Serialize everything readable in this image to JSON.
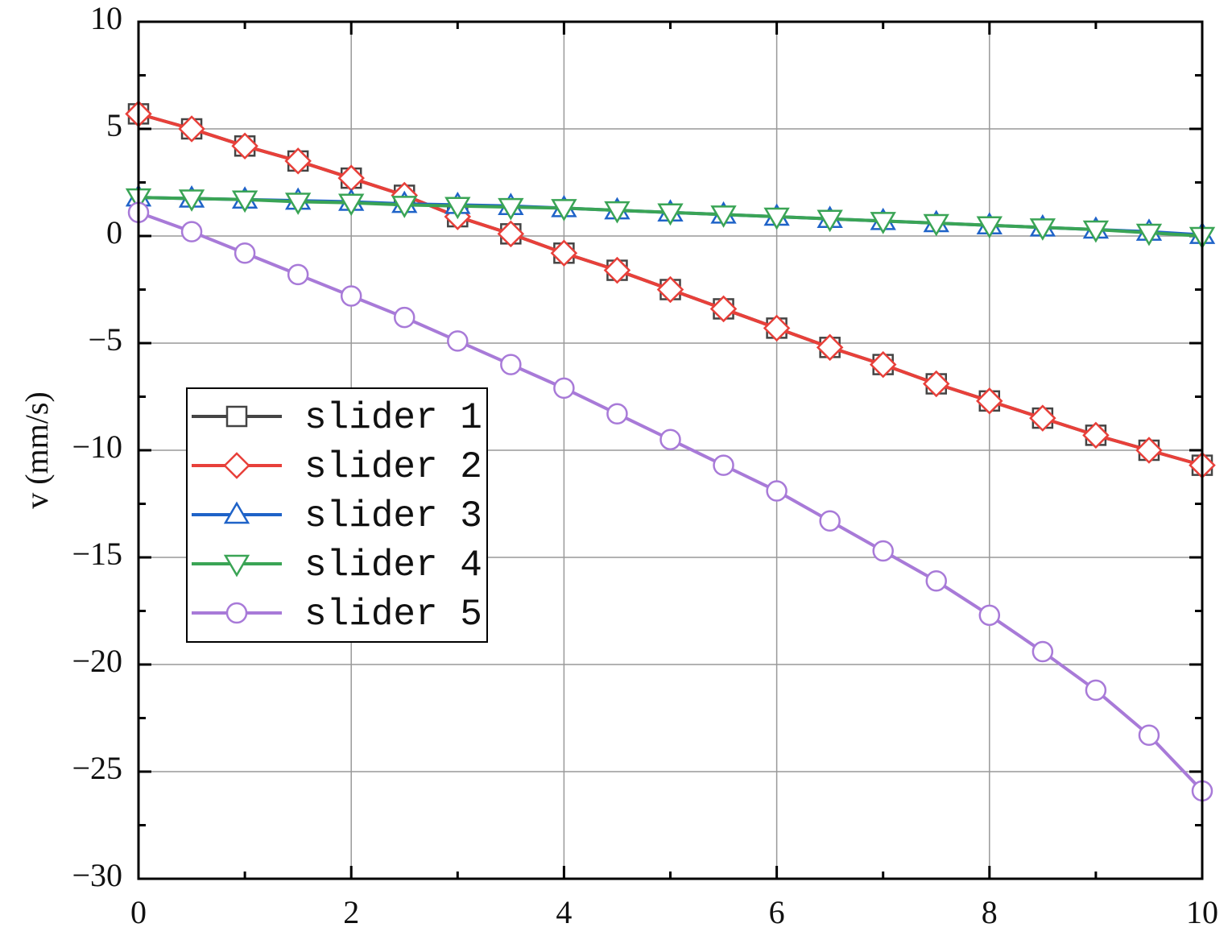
{
  "chart_data": {
    "type": "line",
    "y_label": "v (mm/s)",
    "x": [
      0,
      0.5,
      1,
      1.5,
      2,
      2.5,
      3,
      3.5,
      4,
      4.5,
      5,
      5.5,
      6,
      6.5,
      7,
      7.5,
      8,
      8.5,
      9,
      9.5,
      10
    ],
    "series": [
      {
        "name": "slider 1",
        "color": "#444444",
        "marker": "square",
        "values": [
          5.7,
          5.0,
          4.2,
          3.5,
          2.7,
          1.9,
          0.9,
          0.1,
          -0.8,
          -1.6,
          -2.5,
          -3.4,
          -4.3,
          -5.2,
          -6.0,
          -6.9,
          -7.7,
          -8.5,
          -9.3,
          -10.0,
          -10.7
        ]
      },
      {
        "name": "slider 2",
        "color": "#e8403a",
        "marker": "diamond",
        "values": [
          5.7,
          5.0,
          4.2,
          3.5,
          2.7,
          1.9,
          0.9,
          0.1,
          -0.8,
          -1.6,
          -2.5,
          -3.4,
          -4.3,
          -5.2,
          -6.0,
          -6.9,
          -7.7,
          -8.5,
          -9.3,
          -10.0,
          -10.7
        ]
      },
      {
        "name": "slider 3",
        "color": "#1f63c8",
        "marker": "triangle-up",
        "values": [
          1.8,
          1.75,
          1.7,
          1.65,
          1.6,
          1.5,
          1.45,
          1.4,
          1.3,
          1.2,
          1.1,
          1.0,
          0.9,
          0.8,
          0.7,
          0.6,
          0.5,
          0.4,
          0.3,
          0.2,
          0.05
        ]
      },
      {
        "name": "slider 4",
        "color": "#3aa455",
        "marker": "triangle-down",
        "values": [
          1.8,
          1.75,
          1.7,
          1.6,
          1.55,
          1.45,
          1.4,
          1.35,
          1.3,
          1.2,
          1.1,
          1.0,
          0.9,
          0.8,
          0.7,
          0.6,
          0.5,
          0.4,
          0.3,
          0.15,
          0.0
        ]
      },
      {
        "name": "slider 5",
        "color": "#a87ad8",
        "marker": "circle",
        "values": [
          1.1,
          0.2,
          -0.8,
          -1.8,
          -2.8,
          -3.8,
          -4.9,
          -6.0,
          -7.1,
          -8.3,
          -9.5,
          -10.7,
          -11.9,
          -13.3,
          -14.7,
          -16.1,
          -17.7,
          -19.4,
          -21.2,
          -23.3,
          -25.9
        ]
      }
    ],
    "xlim": [
      0,
      10
    ],
    "xticks": [
      0,
      2,
      4,
      6,
      8,
      10
    ],
    "ylim": [
      -30,
      10
    ],
    "yticks": [
      {
        "value": -30,
        "label": "−30"
      },
      {
        "value": -25,
        "label": "−25"
      },
      {
        "value": -20,
        "label": "−20"
      },
      {
        "value": -15,
        "label": "−15"
      },
      {
        "value": -10,
        "label": "−10"
      },
      {
        "value": -5,
        "label": "−5"
      },
      0,
      5,
      10
    ],
    "grid": true,
    "legend": "left"
  }
}
